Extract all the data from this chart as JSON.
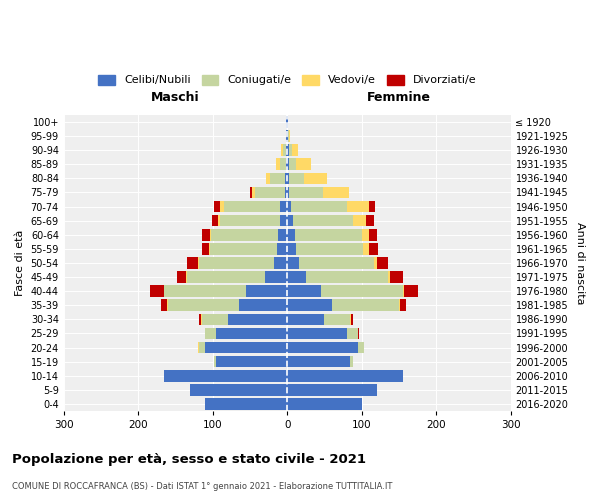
{
  "age_groups": [
    "0-4",
    "5-9",
    "10-14",
    "15-19",
    "20-24",
    "25-29",
    "30-34",
    "35-39",
    "40-44",
    "45-49",
    "50-54",
    "55-59",
    "60-64",
    "65-69",
    "70-74",
    "75-79",
    "80-84",
    "85-89",
    "90-94",
    "95-99",
    "100+"
  ],
  "birth_years": [
    "2016-2020",
    "2011-2015",
    "2006-2010",
    "2001-2005",
    "1996-2000",
    "1991-1995",
    "1986-1990",
    "1981-1985",
    "1976-1980",
    "1971-1975",
    "1966-1970",
    "1961-1965",
    "1956-1960",
    "1951-1955",
    "1946-1950",
    "1941-1945",
    "1936-1940",
    "1931-1935",
    "1926-1930",
    "1921-1925",
    "≤ 1920"
  ],
  "male_celibe": [
    110,
    130,
    165,
    95,
    110,
    95,
    80,
    65,
    55,
    30,
    18,
    14,
    12,
    10,
    10,
    3,
    3,
    2,
    2,
    1,
    1
  ],
  "male_coniugato": [
    0,
    0,
    0,
    3,
    8,
    15,
    35,
    95,
    110,
    105,
    100,
    90,
    90,
    80,
    75,
    40,
    20,
    8,
    4,
    1,
    0
  ],
  "male_vedovo": [
    0,
    0,
    0,
    0,
    2,
    1,
    1,
    1,
    1,
    1,
    2,
    1,
    2,
    3,
    5,
    4,
    5,
    5,
    2,
    0,
    0
  ],
  "male_divorziato": [
    0,
    0,
    0,
    0,
    0,
    0,
    2,
    8,
    18,
    12,
    15,
    10,
    10,
    8,
    8,
    3,
    0,
    0,
    0,
    0,
    0
  ],
  "female_celibe": [
    100,
    120,
    155,
    85,
    95,
    80,
    50,
    60,
    45,
    25,
    16,
    12,
    10,
    8,
    5,
    3,
    3,
    2,
    2,
    1,
    1
  ],
  "female_coniugato": [
    0,
    0,
    0,
    3,
    8,
    15,
    35,
    90,
    110,
    110,
    100,
    90,
    90,
    80,
    75,
    45,
    20,
    10,
    4,
    1,
    0
  ],
  "female_vedovo": [
    0,
    0,
    0,
    0,
    0,
    0,
    1,
    1,
    2,
    3,
    5,
    8,
    10,
    18,
    30,
    35,
    30,
    20,
    8,
    2,
    0
  ],
  "female_divorziato": [
    0,
    0,
    0,
    0,
    0,
    2,
    2,
    8,
    18,
    18,
    15,
    12,
    10,
    10,
    8,
    0,
    0,
    0,
    0,
    0,
    0
  ],
  "color_celibe": "#4472C4",
  "color_coniugato": "#C5D5A0",
  "color_vedovo": "#FFD966",
  "color_divorziato": "#C00000",
  "title": "Popolazione per età, sesso e stato civile - 2021",
  "subtitle": "COMUNE DI ROCCAFRANCA (BS) - Dati ISTAT 1° gennaio 2021 - Elaborazione TUTTITALIA.IT",
  "xlabel_left": "Maschi",
  "xlabel_right": "Femmine",
  "ylabel_left": "Fasce di età",
  "ylabel_right": "Anni di nascita",
  "xlim": 300,
  "bg_color": "#ffffff",
  "grid_color": "#cccccc"
}
